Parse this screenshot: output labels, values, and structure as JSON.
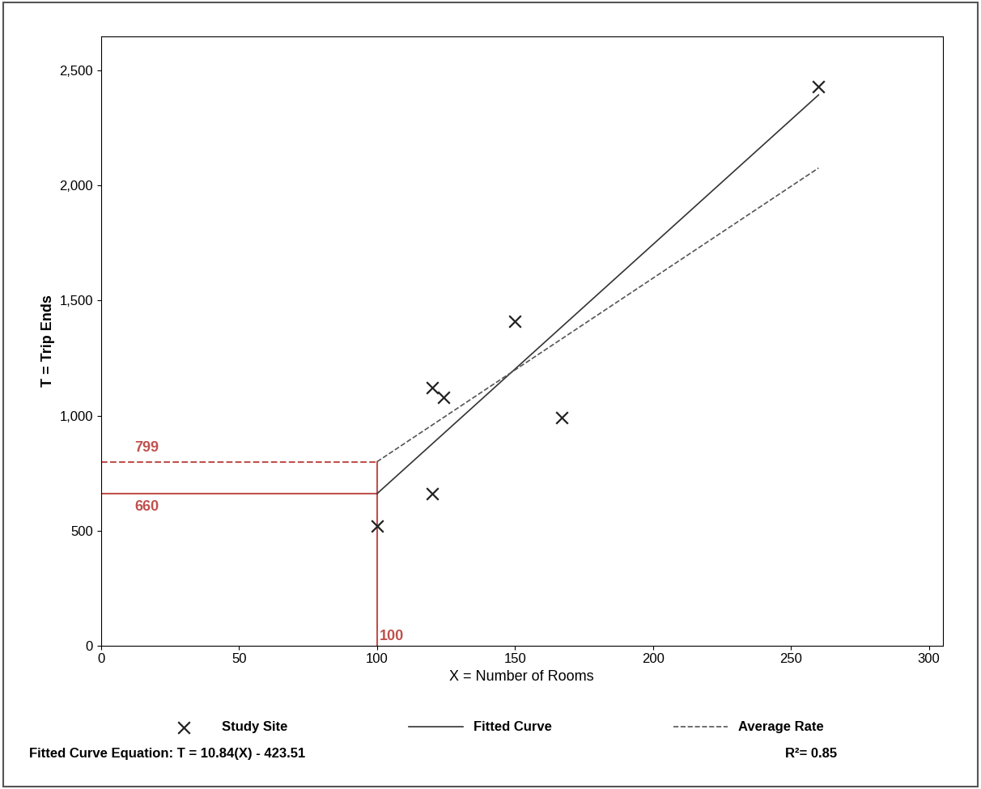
{
  "chart_data": {
    "type": "scatter",
    "x_label": "X = Number of Rooms",
    "y_label": "T = Trip Ends",
    "series": [
      {
        "name": "Study Site",
        "type": "scatter",
        "marker": "x",
        "color": "#222222",
        "x": [
          100,
          120,
          120,
          124,
          150,
          167,
          260
        ],
        "values": [
          520,
          660,
          1120,
          1080,
          1410,
          990,
          2430
        ]
      },
      {
        "name": "Fitted Curve",
        "type": "line",
        "line_style": "solid",
        "color": "#333333",
        "x": [
          100,
          260
        ],
        "values": [
          660,
          2395
        ]
      },
      {
        "name": "Average Rate",
        "type": "line",
        "line_style": "dashed",
        "color": "#555555",
        "x": [
          100,
          260
        ],
        "values": [
          799,
          2077
        ]
      }
    ],
    "guides": [
      {
        "axis": "y",
        "value": 799,
        "line_style": "dashed",
        "color": "#c0504d"
      },
      {
        "axis": "y",
        "value": 660,
        "line_style": "solid",
        "color": "#c0504d"
      },
      {
        "axis": "x",
        "value": 100,
        "line_style": "solid",
        "color": "#c0504d"
      }
    ],
    "annotations": [
      "Fitted Curve Equation: T = 10.84(X) - 423.51",
      "R²= 0.85"
    ],
    "xlim": [
      0,
      305
    ],
    "xticks": [
      0,
      50,
      100,
      150,
      200,
      250,
      300
    ],
    "ylim": [
      0,
      2650
    ],
    "yticks": [
      0,
      500,
      {
        "value": 1000,
        "label": "1,000"
      },
      {
        "value": 1500,
        "label": "1,500"
      },
      {
        "value": 2000,
        "label": "2,000"
      },
      {
        "value": 2500,
        "label": "2,500"
      }
    ],
    "legend": "lower center",
    "grid": false
  }
}
